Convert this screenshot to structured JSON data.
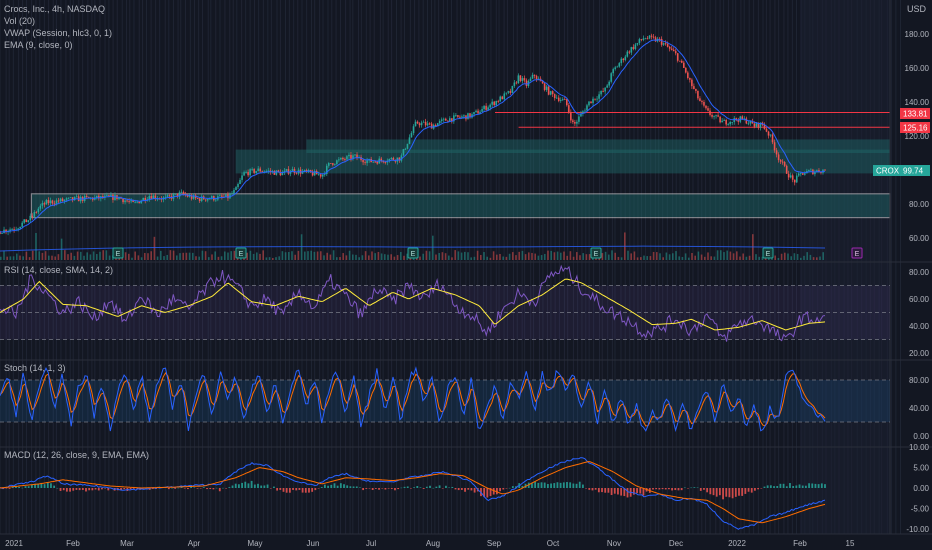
{
  "header": {
    "title": "Crocs, Inc., 4h, NASDAQ",
    "indicators": [
      "Vol (20)",
      "VWAP (Session, hlc3, 0, 1)",
      "EMA (9, close, 0)"
    ],
    "currency": "USD"
  },
  "ticker": {
    "symbol": "CROX",
    "last_price": "99.74"
  },
  "price_levels": [
    {
      "value": 133.81,
      "label": "133.81",
      "color": "#f23645"
    },
    {
      "value": 125.16,
      "label": "125.16",
      "color": "#f23645"
    }
  ],
  "earnings_badges": [
    "E",
    "E",
    "E",
    "E",
    "E",
    "E"
  ],
  "pane_labels": {
    "rsi": "RSI (14, close, SMA, 14, 2)",
    "stoch": "Stoch (14, 1, 3)",
    "macd": "MACD (12, 26, close, 9, EMA, EMA)"
  },
  "colors": {
    "background": "#131722",
    "up": "#26a69a",
    "down": "#ef5350",
    "ema": "#2962ff",
    "rsi": "#7e57c2",
    "rsi_ma": "#ffeb3b",
    "stoch_k": "#2962ff",
    "stoch_d": "#ff6d00",
    "zone": "#1e6b6b",
    "level": "#f23645"
  },
  "chart_data": [
    {
      "pane": "price",
      "type": "candlestick",
      "title": "Crocs, Inc., 4h, NASDAQ",
      "yticks": [
        "60.00",
        "80.00",
        "100.00",
        "120.00",
        "140.00",
        "160.00",
        "180.00"
      ],
      "ylim": [
        50,
        190
      ],
      "xticks": [
        "2021",
        "Feb",
        "Mar",
        "Apr",
        "May",
        "Jun",
        "Jul",
        "Aug",
        "Sep",
        "Oct",
        "Nov",
        "Dec",
        "2022",
        "Feb",
        "15"
      ],
      "close_path": [
        [
          0,
          64
        ],
        [
          2,
          66
        ],
        [
          4,
          72
        ],
        [
          5,
          78
        ],
        [
          6,
          81
        ],
        [
          10,
          83
        ],
        [
          15,
          84
        ],
        [
          17,
          80
        ],
        [
          19,
          85
        ],
        [
          21,
          83
        ],
        [
          23,
          86
        ],
        [
          25,
          83
        ],
        [
          29,
          84
        ],
        [
          30,
          88
        ],
        [
          31,
          98
        ],
        [
          33,
          100
        ],
        [
          36,
          98
        ],
        [
          37,
          100
        ],
        [
          41,
          97
        ],
        [
          42,
          104
        ],
        [
          45,
          108
        ],
        [
          47,
          105
        ],
        [
          51,
          107
        ],
        [
          52,
          118
        ],
        [
          53,
          128
        ],
        [
          55,
          126
        ],
        [
          57,
          130
        ],
        [
          60,
          132
        ],
        [
          63,
          140
        ],
        [
          65,
          146
        ],
        [
          66,
          155
        ],
        [
          67,
          150
        ],
        [
          68,
          156
        ],
        [
          70,
          145
        ],
        [
          72,
          140
        ],
        [
          73,
          126
        ],
        [
          75,
          140
        ],
        [
          77,
          147
        ],
        [
          78,
          158
        ],
        [
          80,
          170
        ],
        [
          82,
          178
        ],
        [
          84,
          176
        ],
        [
          86,
          168
        ],
        [
          87,
          160
        ],
        [
          88,
          150
        ],
        [
          89,
          141
        ],
        [
          90,
          134
        ],
        [
          92,
          128
        ],
        [
          94,
          130
        ],
        [
          95,
          129
        ],
        [
          96,
          126
        ],
        [
          97,
          127
        ],
        [
          98,
          120
        ],
        [
          99,
          108
        ],
        [
          100,
          100
        ],
        [
          101,
          93
        ],
        [
          102,
          98
        ],
        [
          103,
          99
        ],
        [
          105,
          100
        ]
      ],
      "support_zones": [
        {
          "from_x": 4,
          "to_x": 100,
          "y_low": 72,
          "y_high": 86,
          "outlined": true
        },
        {
          "from_x": 30,
          "to_x": 100,
          "y_low": 98,
          "y_high": 112,
          "outlined": false
        },
        {
          "from_x": 39,
          "to_x": 100,
          "y_low": 110,
          "y_high": 118,
          "outlined": false
        }
      ]
    },
    {
      "pane": "volume",
      "type": "bar",
      "series_names": [
        "Vol (20)"
      ]
    },
    {
      "pane": "rsi",
      "type": "line",
      "title": "RSI (14, close, SMA, 14, 2)",
      "yticks": [
        "20.00",
        "40.00",
        "60.00",
        "80.00"
      ],
      "ylim": [
        15,
        85
      ],
      "bands": [
        30,
        50,
        70
      ],
      "rsi_ma_path": [
        [
          0,
          50
        ],
        [
          3,
          60
        ],
        [
          5,
          73
        ],
        [
          8,
          56
        ],
        [
          11,
          55
        ],
        [
          15,
          47
        ],
        [
          18,
          55
        ],
        [
          21,
          50
        ],
        [
          24,
          55
        ],
        [
          27,
          62
        ],
        [
          29,
          72
        ],
        [
          32,
          58
        ],
        [
          35,
          55
        ],
        [
          38,
          62
        ],
        [
          41,
          58
        ],
        [
          44,
          68
        ],
        [
          47,
          55
        ],
        [
          50,
          65
        ],
        [
          52,
          60
        ],
        [
          55,
          68
        ],
        [
          58,
          63
        ],
        [
          61,
          55
        ],
        [
          63,
          41
        ],
        [
          66,
          55
        ],
        [
          69,
          63
        ],
        [
          72,
          75
        ],
        [
          74,
          72
        ],
        [
          77,
          62
        ],
        [
          80,
          52
        ],
        [
          83,
          41
        ],
        [
          86,
          42
        ],
        [
          88,
          45
        ],
        [
          91,
          37
        ],
        [
          94,
          39
        ],
        [
          97,
          44
        ],
        [
          100,
          37
        ],
        [
          103,
          42
        ],
        [
          105,
          43
        ]
      ],
      "rsi_path": [
        [
          0,
          54
        ],
        [
          2,
          48
        ],
        [
          4,
          76
        ],
        [
          6,
          64
        ],
        [
          8,
          50
        ],
        [
          10,
          58
        ],
        [
          12,
          45
        ],
        [
          14,
          60
        ],
        [
          16,
          42
        ],
        [
          18,
          63
        ],
        [
          20,
          48
        ],
        [
          22,
          60
        ],
        [
          24,
          52
        ],
        [
          26,
          66
        ],
        [
          28,
          78
        ],
        [
          30,
          70
        ],
        [
          32,
          55
        ],
        [
          34,
          60
        ],
        [
          36,
          47
        ],
        [
          38,
          66
        ],
        [
          40,
          53
        ],
        [
          42,
          74
        ],
        [
          44,
          62
        ],
        [
          46,
          48
        ],
        [
          48,
          68
        ],
        [
          50,
          58
        ],
        [
          52,
          70
        ],
        [
          54,
          60
        ],
        [
          56,
          72
        ],
        [
          58,
          55
        ],
        [
          60,
          48
        ],
        [
          62,
          35
        ],
        [
          64,
          52
        ],
        [
          66,
          64
        ],
        [
          68,
          58
        ],
        [
          70,
          78
        ],
        [
          72,
          82
        ],
        [
          74,
          68
        ],
        [
          76,
          58
        ],
        [
          78,
          50
        ],
        [
          80,
          44
        ],
        [
          82,
          35
        ],
        [
          84,
          38
        ],
        [
          86,
          46
        ],
        [
          88,
          36
        ],
        [
          90,
          48
        ],
        [
          92,
          30
        ],
        [
          94,
          42
        ],
        [
          96,
          45
        ],
        [
          98,
          38
        ],
        [
          100,
          28
        ],
        [
          102,
          46
        ],
        [
          104,
          45
        ],
        [
          105,
          44
        ]
      ]
    },
    {
      "pane": "stoch",
      "type": "line",
      "title": "Stoch (14, 1, 3)",
      "yticks": [
        "0.00",
        "40.00",
        "80.00"
      ],
      "ylim": [
        -5,
        100
      ],
      "bands": [
        20,
        80
      ],
      "k_path": [
        [
          0,
          60
        ],
        [
          1,
          85
        ],
        [
          2,
          30
        ],
        [
          3,
          90
        ],
        [
          4,
          20
        ],
        [
          5,
          70
        ],
        [
          6,
          95
        ],
        [
          7,
          40
        ],
        [
          8,
          88
        ],
        [
          9,
          15
        ],
        [
          10,
          70
        ],
        [
          11,
          90
        ],
        [
          12,
          30
        ],
        [
          13,
          80
        ],
        [
          14,
          10
        ],
        [
          15,
          65
        ],
        [
          16,
          90
        ],
        [
          17,
          35
        ],
        [
          18,
          88
        ],
        [
          19,
          20
        ],
        [
          20,
          75
        ],
        [
          21,
          95
        ],
        [
          22,
          40
        ],
        [
          23,
          85
        ],
        [
          24,
          10
        ],
        [
          25,
          60
        ],
        [
          26,
          92
        ],
        [
          27,
          30
        ],
        [
          28,
          90
        ],
        [
          29,
          55
        ],
        [
          30,
          85
        ],
        [
          31,
          20
        ],
        [
          32,
          70
        ],
        [
          33,
          90
        ],
        [
          34,
          25
        ],
        [
          35,
          80
        ],
        [
          36,
          15
        ],
        [
          37,
          70
        ],
        [
          38,
          95
        ],
        [
          39,
          40
        ],
        [
          40,
          85
        ],
        [
          41,
          20
        ],
        [
          42,
          75
        ],
        [
          43,
          90
        ],
        [
          44,
          30
        ],
        [
          45,
          88
        ],
        [
          46,
          10
        ],
        [
          47,
          60
        ],
        [
          48,
          92
        ],
        [
          49,
          35
        ],
        [
          50,
          88
        ],
        [
          51,
          20
        ],
        [
          52,
          80
        ],
        [
          53,
          95
        ],
        [
          54,
          45
        ],
        [
          55,
          85
        ],
        [
          56,
          15
        ],
        [
          57,
          70
        ],
        [
          58,
          90
        ],
        [
          59,
          25
        ],
        [
          60,
          80
        ],
        [
          61,
          5
        ],
        [
          62,
          40
        ],
        [
          63,
          75
        ],
        [
          64,
          20
        ],
        [
          65,
          85
        ],
        [
          66,
          50
        ],
        [
          67,
          92
        ],
        [
          68,
          30
        ],
        [
          69,
          88
        ],
        [
          70,
          60
        ],
        [
          71,
          95
        ],
        [
          72,
          70
        ],
        [
          73,
          88
        ],
        [
          74,
          40
        ],
        [
          75,
          85
        ],
        [
          76,
          20
        ],
        [
          77,
          65
        ],
        [
          78,
          15
        ],
        [
          79,
          55
        ],
        [
          80,
          10
        ],
        [
          81,
          45
        ],
        [
          82,
          5
        ],
        [
          83,
          35
        ],
        [
          84,
          20
        ],
        [
          85,
          60
        ],
        [
          86,
          10
        ],
        [
          87,
          50
        ],
        [
          88,
          5
        ],
        [
          89,
          40
        ],
        [
          90,
          70
        ],
        [
          91,
          20
        ],
        [
          92,
          85
        ],
        [
          93,
          30
        ],
        [
          94,
          60
        ],
        [
          95,
          10
        ],
        [
          96,
          45
        ],
        [
          97,
          5
        ],
        [
          98,
          40
        ],
        [
          99,
          20
        ],
        [
          100,
          85
        ],
        [
          101,
          90
        ],
        [
          102,
          60
        ],
        [
          103,
          40
        ],
        [
          104,
          30
        ],
        [
          105,
          25
        ]
      ]
    },
    {
      "pane": "macd",
      "type": "line",
      "title": "MACD (12, 26, close, 9, EMA, EMA)",
      "yticks": [
        "-10.00",
        "-5.00",
        "0.00",
        "5.00",
        "10.00"
      ],
      "ylim": [
        -12,
        12
      ],
      "macd_path": [
        [
          0,
          0
        ],
        [
          4,
          1.5
        ],
        [
          6,
          3
        ],
        [
          8,
          1
        ],
        [
          12,
          0.5
        ],
        [
          16,
          -0.5
        ],
        [
          20,
          0
        ],
        [
          24,
          0.5
        ],
        [
          28,
          1
        ],
        [
          30,
          4
        ],
        [
          32,
          6
        ],
        [
          34,
          5.5
        ],
        [
          36,
          3
        ],
        [
          38,
          1.5
        ],
        [
          40,
          0.5
        ],
        [
          42,
          2.5
        ],
        [
          44,
          3.5
        ],
        [
          46,
          2
        ],
        [
          48,
          1.5
        ],
        [
          50,
          1.5
        ],
        [
          52,
          2.5
        ],
        [
          54,
          3
        ],
        [
          56,
          4
        ],
        [
          58,
          3
        ],
        [
          60,
          1.5
        ],
        [
          62,
          -3
        ],
        [
          64,
          -2
        ],
        [
          66,
          0.5
        ],
        [
          68,
          3
        ],
        [
          70,
          5
        ],
        [
          72,
          6.5
        ],
        [
          74,
          7.5
        ],
        [
          76,
          5
        ],
        [
          78,
          2
        ],
        [
          80,
          -1
        ],
        [
          82,
          -2
        ],
        [
          84,
          -1.5
        ],
        [
          86,
          -3
        ],
        [
          88,
          -2.5
        ],
        [
          90,
          -4
        ],
        [
          92,
          -8
        ],
        [
          94,
          -10
        ],
        [
          96,
          -9
        ],
        [
          98,
          -7
        ],
        [
          100,
          -6
        ],
        [
          102,
          -4.5
        ],
        [
          104,
          -3.5
        ],
        [
          105,
          -3
        ]
      ],
      "signal_path": [
        [
          0,
          0
        ],
        [
          5,
          1
        ],
        [
          8,
          2
        ],
        [
          10,
          1.5
        ],
        [
          14,
          0.5
        ],
        [
          18,
          0
        ],
        [
          22,
          0.2
        ],
        [
          26,
          0.5
        ],
        [
          30,
          2.5
        ],
        [
          33,
          5
        ],
        [
          36,
          4
        ],
        [
          38,
          2.5
        ],
        [
          41,
          1
        ],
        [
          44,
          2.5
        ],
        [
          47,
          2.2
        ],
        [
          50,
          1.8
        ],
        [
          53,
          2.5
        ],
        [
          56,
          3.5
        ],
        [
          59,
          3
        ],
        [
          62,
          0
        ],
        [
          64,
          -1.5
        ],
        [
          66,
          -0.5
        ],
        [
          69,
          2.5
        ],
        [
          72,
          5
        ],
        [
          75,
          6.5
        ],
        [
          78,
          4
        ],
        [
          81,
          0.5
        ],
        [
          84,
          -1.5
        ],
        [
          87,
          -2.5
        ],
        [
          90,
          -3
        ],
        [
          92,
          -5
        ],
        [
          94,
          -7.5
        ],
        [
          97,
          -8.5
        ],
        [
          100,
          -7
        ],
        [
          103,
          -5
        ],
        [
          105,
          -4
        ]
      ]
    }
  ]
}
